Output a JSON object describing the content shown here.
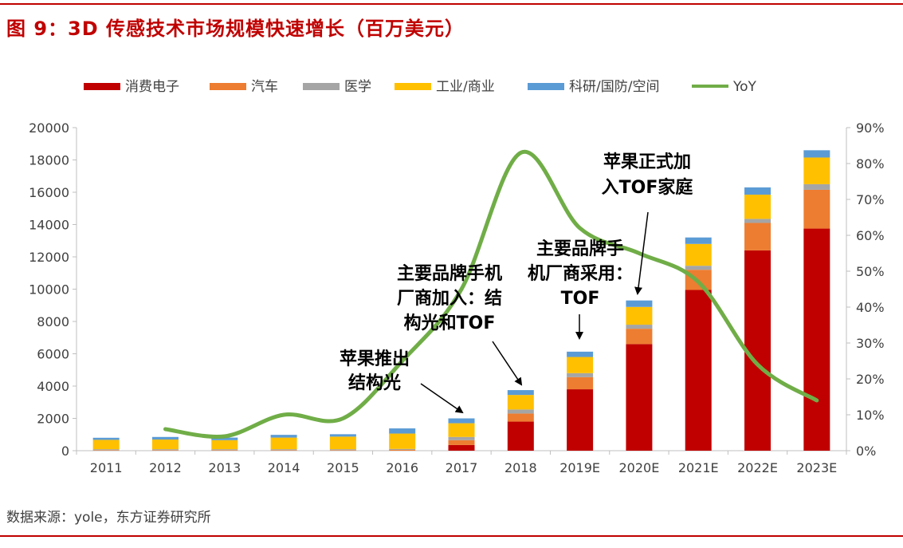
{
  "title": "图 9：3D 传感技术市场规模快速增长（百万美元）",
  "source": "数据来源：yole，东方证券研究所",
  "colors": {
    "消费电子": "#c00000",
    "汽车": "#ed7d31",
    "医学": "#a5a5a5",
    "工业/商业": "#ffc000",
    "科研/国防/空间": "#5b9bd5",
    "YoY": "#70ad47",
    "rule": "#c00000"
  },
  "chart_data": {
    "type": "bar",
    "stacked": true,
    "categories": [
      "2011",
      "2012",
      "2013",
      "2014",
      "2015",
      "2016",
      "2017",
      "2018",
      "2019E",
      "2020E",
      "2021E",
      "2022E",
      "2023E"
    ],
    "series": [
      {
        "name": "消费电子",
        "values": [
          0,
          0,
          0,
          0,
          0,
          0,
          350,
          1800,
          3800,
          6600,
          9950,
          12400,
          13750
        ]
      },
      {
        "name": "汽车",
        "values": [
          30,
          30,
          30,
          30,
          30,
          50,
          300,
          500,
          750,
          950,
          1250,
          1700,
          2400
        ]
      },
      {
        "name": "医学",
        "values": [
          60,
          60,
          60,
          60,
          60,
          60,
          200,
          250,
          250,
          250,
          250,
          250,
          350
        ]
      },
      {
        "name": "工业/商业",
        "values": [
          580,
          600,
          560,
          720,
          780,
          950,
          850,
          900,
          1000,
          1100,
          1350,
          1500,
          1650
        ]
      },
      {
        "name": "科研/国防/空间",
        "values": [
          130,
          160,
          160,
          170,
          150,
          320,
          300,
          300,
          330,
          400,
          400,
          450,
          450
        ]
      },
      {
        "name": "YoY",
        "axis": "right",
        "type": "line",
        "values": [
          null,
          6,
          4,
          10,
          9,
          25,
          45,
          83,
          62,
          55,
          47,
          24,
          14
        ]
      }
    ],
    "y_left": {
      "min": 0,
      "max": 20000,
      "ticks": [
        "0",
        "2000",
        "4000",
        "6000",
        "8000",
        "10000",
        "12000",
        "14000",
        "16000",
        "18000",
        "20000"
      ]
    },
    "y_right": {
      "min": 0,
      "max": 90,
      "ticks": [
        "0%",
        "10%",
        "20%",
        "30%",
        "40%",
        "50%",
        "60%",
        "70%",
        "80%",
        "90%"
      ]
    },
    "legend": {
      "position": "top",
      "items": [
        "消费电子",
        "汽车",
        "医学",
        "工业/商业",
        "科研/国防/空间",
        "YoY"
      ]
    },
    "grid": false,
    "annotations": [
      {
        "lines": [
          "苹果推出",
          "结构光"
        ],
        "target": "2017"
      },
      {
        "lines": [
          "主要品牌手机",
          "厂商加入：结",
          "构光和TOF"
        ],
        "target": "2018"
      },
      {
        "lines": [
          "主要品牌手",
          "机厂商采用：",
          "TOF"
        ],
        "target": "2019E"
      },
      {
        "lines": [
          "苹果正式加",
          "入TOF家庭"
        ],
        "target": "2020E"
      }
    ]
  }
}
